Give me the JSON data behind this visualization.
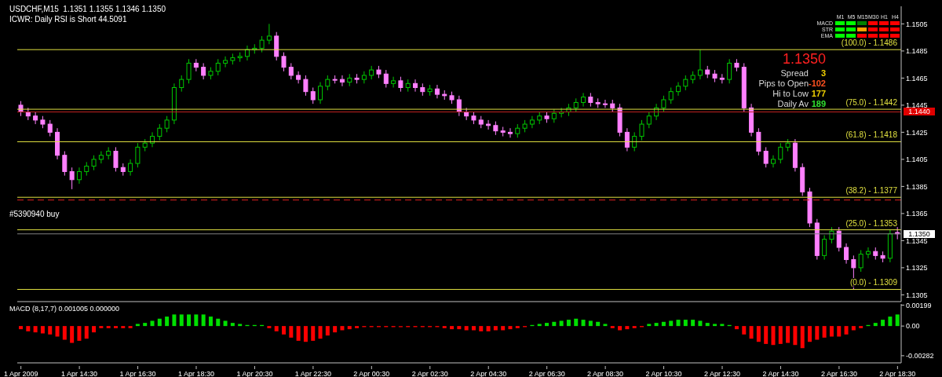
{
  "chart_data": [
    {
      "type": "candlestick",
      "title": "USDCHF,M15  1.1351 1.1355 1.1346 1.1350",
      "subtitle": "ICWR: Daily RSI is Short 44.5091",
      "ohlc": [
        [
          1.1445,
          1.1448,
          1.1437,
          1.144
        ],
        [
          1.144,
          1.1443,
          1.1434,
          1.1437
        ],
        [
          1.1437,
          1.144,
          1.1431,
          1.1434
        ],
        [
          1.1434,
          1.1437,
          1.1428,
          1.1431
        ],
        [
          1.1431,
          1.1434,
          1.1422,
          1.1425
        ],
        [
          1.1425,
          1.1428,
          1.1405,
          1.1408
        ],
        [
          1.1408,
          1.1411,
          1.1393,
          1.1396
        ],
        [
          1.1396,
          1.1399,
          1.1383,
          1.139
        ],
        [
          1.139,
          1.1399,
          1.1387,
          1.1396
        ],
        [
          1.1396,
          1.1403,
          1.1393,
          1.14
        ],
        [
          1.14,
          1.1408,
          1.1397,
          1.1405
        ],
        [
          1.1405,
          1.1411,
          1.1402,
          1.1408
        ],
        [
          1.1408,
          1.1414,
          1.1405,
          1.1411
        ],
        [
          1.1411,
          1.1414,
          1.1396,
          1.1399
        ],
        [
          1.1399,
          1.1402,
          1.1393,
          1.1396
        ],
        [
          1.1396,
          1.1405,
          1.1393,
          1.1402
        ],
        [
          1.1402,
          1.1417,
          1.1399,
          1.1414
        ],
        [
          1.1414,
          1.142,
          1.1411,
          1.1417
        ],
        [
          1.1417,
          1.1425,
          1.1414,
          1.1422
        ],
        [
          1.1422,
          1.1431,
          1.1419,
          1.1428
        ],
        [
          1.1428,
          1.1437,
          1.1425,
          1.1434
        ],
        [
          1.1434,
          1.1461,
          1.1431,
          1.1458
        ],
        [
          1.1458,
          1.1467,
          1.1455,
          1.1464
        ],
        [
          1.1464,
          1.1479,
          1.1461,
          1.1476
        ],
        [
          1.1476,
          1.1479,
          1.147,
          1.1473
        ],
        [
          1.1473,
          1.1476,
          1.1464,
          1.1467
        ],
        [
          1.1467,
          1.1473,
          1.1464,
          1.147
        ],
        [
          1.147,
          1.1479,
          1.1467,
          1.1476
        ],
        [
          1.1476,
          1.1481,
          1.1473,
          1.1478
        ],
        [
          1.1478,
          1.1483,
          1.1475,
          1.148
        ],
        [
          1.148,
          1.1484,
          1.1477,
          1.1481
        ],
        [
          1.1481,
          1.1489,
          1.1478,
          1.1486
        ],
        [
          1.1486,
          1.149,
          1.1483,
          1.1487
        ],
        [
          1.1487,
          1.1496,
          1.1484,
          1.1493
        ],
        [
          1.1493,
          1.1505,
          1.149,
          1.1496
        ],
        [
          1.1496,
          1.1499,
          1.1478,
          1.1481
        ],
        [
          1.1481,
          1.1484,
          1.147,
          1.1473
        ],
        [
          1.1473,
          1.1476,
          1.1464,
          1.1467
        ],
        [
          1.1467,
          1.147,
          1.1461,
          1.1464
        ],
        [
          1.1464,
          1.1467,
          1.1452,
          1.1455
        ],
        [
          1.1455,
          1.1458,
          1.1446,
          1.1449
        ],
        [
          1.1449,
          1.1462,
          1.1446,
          1.1459
        ],
        [
          1.1459,
          1.1467,
          1.1456,
          1.1464
        ],
        [
          1.1464,
          1.1467,
          1.1461,
          1.1464
        ],
        [
          1.1464,
          1.1467,
          1.1459,
          1.1462
        ],
        [
          1.1462,
          1.1468,
          1.1459,
          1.1465
        ],
        [
          1.1465,
          1.1468,
          1.1461,
          1.1464
        ],
        [
          1.1464,
          1.147,
          1.1461,
          1.1467
        ],
        [
          1.1467,
          1.1474,
          1.1464,
          1.1471
        ],
        [
          1.1471,
          1.1474,
          1.1465,
          1.1468
        ],
        [
          1.1468,
          1.1471,
          1.1458,
          1.1461
        ],
        [
          1.1461,
          1.1466,
          1.1458,
          1.1463
        ],
        [
          1.1463,
          1.1466,
          1.1455,
          1.1458
        ],
        [
          1.1458,
          1.1464,
          1.1455,
          1.1461
        ],
        [
          1.1461,
          1.1464,
          1.1455,
          1.1458
        ],
        [
          1.1458,
          1.1461,
          1.1452,
          1.1455
        ],
        [
          1.1455,
          1.146,
          1.1452,
          1.1457
        ],
        [
          1.1457,
          1.146,
          1.145,
          1.1453
        ],
        [
          1.1453,
          1.1456,
          1.1449,
          1.1452
        ],
        [
          1.1452,
          1.1455,
          1.1446,
          1.1449
        ],
        [
          1.1449,
          1.1452,
          1.1437,
          1.144
        ],
        [
          1.144,
          1.1443,
          1.1434,
          1.1437
        ],
        [
          1.1437,
          1.144,
          1.1431,
          1.1434
        ],
        [
          1.1434,
          1.1437,
          1.1428,
          1.1431
        ],
        [
          1.1431,
          1.1434,
          1.1427,
          1.143
        ],
        [
          1.143,
          1.1433,
          1.1423,
          1.1426
        ],
        [
          1.1426,
          1.1429,
          1.1422,
          1.1425
        ],
        [
          1.1425,
          1.1428,
          1.1421,
          1.1424
        ],
        [
          1.1424,
          1.1431,
          1.1421,
          1.1428
        ],
        [
          1.1428,
          1.1434,
          1.1425,
          1.1431
        ],
        [
          1.1431,
          1.1437,
          1.1428,
          1.1434
        ],
        [
          1.1434,
          1.144,
          1.1431,
          1.1437
        ],
        [
          1.1437,
          1.144,
          1.1432,
          1.1435
        ],
        [
          1.1435,
          1.1442,
          1.1432,
          1.1439
        ],
        [
          1.1439,
          1.1443,
          1.1436,
          1.144
        ],
        [
          1.144,
          1.1446,
          1.1437,
          1.1443
        ],
        [
          1.1443,
          1.145,
          1.144,
          1.1447
        ],
        [
          1.1447,
          1.1454,
          1.1444,
          1.1451
        ],
        [
          1.1451,
          1.1454,
          1.1444,
          1.1447
        ],
        [
          1.1447,
          1.145,
          1.1443,
          1.1446
        ],
        [
          1.1446,
          1.1449,
          1.1443,
          1.1446
        ],
        [
          1.1446,
          1.1449,
          1.144,
          1.1443
        ],
        [
          1.1443,
          1.1446,
          1.1422,
          1.1425
        ],
        [
          1.1425,
          1.1428,
          1.1411,
          1.1414
        ],
        [
          1.1414,
          1.1425,
          1.1411,
          1.1422
        ],
        [
          1.1422,
          1.1434,
          1.1419,
          1.1431
        ],
        [
          1.1431,
          1.144,
          1.1428,
          1.1437
        ],
        [
          1.1437,
          1.1446,
          1.1434,
          1.1443
        ],
        [
          1.1443,
          1.1452,
          1.144,
          1.1449
        ],
        [
          1.1449,
          1.1458,
          1.1446,
          1.1455
        ],
        [
          1.1455,
          1.1462,
          1.1452,
          1.1459
        ],
        [
          1.1459,
          1.1467,
          1.1456,
          1.1464
        ],
        [
          1.1464,
          1.147,
          1.1461,
          1.1467
        ],
        [
          1.1467,
          1.1486,
          1.1464,
          1.1471
        ],
        [
          1.1471,
          1.1474,
          1.1465,
          1.1468
        ],
        [
          1.1468,
          1.1471,
          1.1462,
          1.1465
        ],
        [
          1.1465,
          1.1468,
          1.1461,
          1.1464
        ],
        [
          1.1464,
          1.1479,
          1.1461,
          1.1476
        ],
        [
          1.1476,
          1.1479,
          1.147,
          1.1473
        ],
        [
          1.1473,
          1.1476,
          1.144,
          1.1443
        ],
        [
          1.1443,
          1.1446,
          1.1422,
          1.1425
        ],
        [
          1.1425,
          1.1428,
          1.1408,
          1.1411
        ],
        [
          1.1411,
          1.1414,
          1.1399,
          1.1402
        ],
        [
          1.1402,
          1.1408,
          1.1399,
          1.1405
        ],
        [
          1.1405,
          1.1417,
          1.1402,
          1.1414
        ],
        [
          1.1414,
          1.142,
          1.1411,
          1.1417
        ],
        [
          1.1417,
          1.142,
          1.1396,
          1.1399
        ],
        [
          1.1399,
          1.1402,
          1.1378,
          1.1381
        ],
        [
          1.1381,
          1.1384,
          1.1355,
          1.1358
        ],
        [
          1.1358,
          1.1361,
          1.1331,
          1.1334
        ],
        [
          1.1334,
          1.1349,
          1.1331,
          1.1346
        ],
        [
          1.1346,
          1.1355,
          1.1343,
          1.1352
        ],
        [
          1.1352,
          1.1355,
          1.1337,
          1.134
        ],
        [
          1.134,
          1.1343,
          1.1328,
          1.1331
        ],
        [
          1.1331,
          1.1334,
          1.1309,
          1.1325
        ],
        [
          1.1325,
          1.1338,
          1.1322,
          1.1335
        ],
        [
          1.1335,
          1.134,
          1.1332,
          1.1337
        ],
        [
          1.1337,
          1.134,
          1.1331,
          1.1334
        ],
        [
          1.1334,
          1.1337,
          1.1329,
          1.1332
        ],
        [
          1.1332,
          1.1353,
          1.1329,
          1.135
        ],
        [
          1.1351,
          1.1355,
          1.1346,
          1.135
        ]
      ],
      "colors": [
        "#ff80ff",
        "#ff80ff",
        "#ff80ff",
        "#ff80ff",
        "#ff80ff",
        "#ff80ff",
        "#ff80ff",
        "#ff80ff",
        "#00c800",
        "#00c800",
        "#00c800",
        "#00c800",
        "#00c800",
        "#ff80ff",
        "#ff80ff",
        "#00c800",
        "#00c800",
        "#00c800",
        "#00c800",
        "#00c800",
        "#00c800",
        "#00c800",
        "#00c800",
        "#00c800",
        "#ff80ff",
        "#ff80ff",
        "#00c800",
        "#00c800",
        "#00c800",
        "#00c800",
        "#00c800",
        "#00c800",
        "#00c800",
        "#00c800",
        "#00c800",
        "#ff80ff",
        "#ff80ff",
        "#ff80ff",
        "#ff80ff",
        "#ff80ff",
        "#ff80ff",
        "#00c800",
        "#00c800",
        "#ff80ff",
        "#ff80ff",
        "#00c800",
        "#ff80ff",
        "#00c800",
        "#00c800",
        "#ff80ff",
        "#ff80ff",
        "#00c800",
        "#ff80ff",
        "#00c800",
        "#ff80ff",
        "#ff80ff",
        "#00c800",
        "#ff80ff",
        "#ff80ff",
        "#ff80ff",
        "#ff80ff",
        "#ff80ff",
        "#ff80ff",
        "#ff80ff",
        "#ff80ff",
        "#ff80ff",
        "#ff80ff",
        "#ff80ff",
        "#00c800",
        "#00c800",
        "#00c800",
        "#00c800",
        "#ff80ff",
        "#00c800",
        "#00c800",
        "#00c800",
        "#00c800",
        "#00c800",
        "#ff80ff",
        "#ff80ff",
        "#ff80ff",
        "#ff80ff",
        "#ff80ff",
        "#ff80ff",
        "#00c800",
        "#00c800",
        "#00c800",
        "#00c800",
        "#00c800",
        "#00c800",
        "#00c800",
        "#00c800",
        "#00c800",
        "#00c800",
        "#ff80ff",
        "#ff80ff",
        "#ff80ff",
        "#00c800",
        "#ff80ff",
        "#ff80ff",
        "#ff80ff",
        "#ff80ff",
        "#ff80ff",
        "#00c800",
        "#00c800",
        "#00c800",
        "#ff80ff",
        "#ff80ff",
        "#ff80ff",
        "#ff80ff",
        "#00c800",
        "#00c800",
        "#ff80ff",
        "#ff80ff",
        "#ff80ff",
        "#00c800",
        "#00c800",
        "#ff80ff",
        "#ff80ff",
        "#00c800",
        "#ff80ff"
      ],
      "ylim": [
        1.13,
        1.1518
      ],
      "yticks": [
        1.1505,
        1.1485,
        1.1465,
        1.1445,
        1.1425,
        1.1405,
        1.1385,
        1.1365,
        1.1345,
        1.1325,
        1.1305
      ],
      "tick_labels": "y",
      "ref_lines": [
        {
          "axis": "y",
          "value": 1.1486,
          "color": "#e0e040"
        },
        {
          "axis": "y",
          "value": 1.1442,
          "color": "#e0e040"
        },
        {
          "axis": "y",
          "value": 1.1418,
          "color": "#e0e040"
        },
        {
          "axis": "y",
          "value": 1.1377,
          "color": "#e0e040"
        },
        {
          "axis": "y",
          "value": 1.1353,
          "color": "#e0e040"
        },
        {
          "axis": "y",
          "value": 1.1309,
          "color": "#e0e040"
        },
        {
          "axis": "y",
          "value": 1.144,
          "color": "#c02020"
        },
        {
          "axis": "y",
          "value": 1.135,
          "color": "#808080"
        },
        {
          "axis": "y",
          "value": 1.1375,
          "color": "#e02020",
          "line_style": "dashed"
        }
      ],
      "annotations": [
        "#5390940 buy",
        "1.1350",
        "Spread",
        "3",
        "Pips to Open",
        "-102",
        "Hi to Low",
        "177",
        "Daily Av",
        "189",
        "M1",
        "M5",
        "M15",
        "M30",
        "H1",
        "H4",
        "MACD",
        "STR",
        "EMA",
        "1.1440",
        "1.1350",
        "(100.0) - 1.1486",
        "(75.0) - 1.1442",
        "(61.8) - 1.1418",
        "(38.2) - 1.1377",
        "(25.0) - 1.1353",
        "(0.0) - 1.1309"
      ]
    },
    {
      "type": "bar",
      "title": "MACD (8,17,7) 0.001005 0.000000",
      "categories": [
        "1 Apr 2009",
        null,
        null,
        null,
        null,
        null,
        null,
        null,
        "1 Apr 14:30",
        null,
        null,
        null,
        null,
        null,
        null,
        null,
        "1 Apr 16:30",
        null,
        null,
        null,
        null,
        null,
        null,
        null,
        "1 Apr 18:30",
        null,
        null,
        null,
        null,
        null,
        null,
        null,
        "1 Apr 20:30",
        null,
        null,
        null,
        null,
        null,
        null,
        null,
        "1 Apr 22:30",
        null,
        null,
        null,
        null,
        null,
        null,
        null,
        "2 Apr 00:30",
        null,
        null,
        null,
        null,
        null,
        null,
        null,
        "2 Apr 02:30",
        null,
        null,
        null,
        null,
        null,
        null,
        null,
        "2 Apr 04:30",
        null,
        null,
        null,
        null,
        null,
        null,
        null,
        "2 Apr 06:30",
        null,
        null,
        null,
        null,
        null,
        null,
        null,
        "2 Apr 08:30",
        null,
        null,
        null,
        null,
        null,
        null,
        null,
        "2 Apr 10:30",
        null,
        null,
        null,
        null,
        null,
        null,
        null,
        "2 Apr 12:30",
        null,
        null,
        null,
        null,
        null,
        null,
        null,
        "2 Apr 14:30",
        null,
        null,
        null,
        null,
        null,
        null,
        null,
        "2 Apr 16:30",
        null,
        null,
        null,
        null,
        null,
        null,
        null,
        "2 Apr 18:30"
      ],
      "values": [
        -0.0003,
        -0.0005,
        -0.0006,
        -0.0007,
        -0.0008,
        -0.001,
        -0.0013,
        -0.0016,
        -0.0014,
        -0.0012,
        -0.0006,
        -0.0002,
        -0.0002,
        -0.0002,
        -0.0002,
        -0.0002,
        0.0002,
        0.0003,
        0.0005,
        0.0007,
        0.0009,
        0.0011,
        0.0011,
        0.0011,
        0.0011,
        0.0011,
        0.0009,
        0.0007,
        0.0005,
        0.0003,
        0.0002,
        0.0001,
        0.0001,
        0.0001,
        -0.0002,
        -0.0005,
        -0.0008,
        -0.0011,
        -0.0014,
        -0.0015,
        -0.0014,
        -0.0012,
        -0.0009,
        -0.0006,
        -0.0004,
        -0.0003,
        -0.0002,
        -0.0001,
        -0.0001,
        -0.0001,
        -0.0001,
        -0.0001,
        -0.0001,
        -0.0001,
        -0.0001,
        -0.0001,
        -0.0001,
        -0.0001,
        -0.0002,
        -0.0003,
        -0.0003,
        -0.0004,
        -0.0004,
        -0.0005,
        -0.0005,
        -0.0004,
        -0.0004,
        -0.0003,
        -0.0002,
        -0.0001,
        0.0001,
        0.0002,
        0.0003,
        0.0004,
        0.0005,
        0.0006,
        0.0007,
        0.0006,
        0.0005,
        0.0004,
        0.0002,
        -0.0002,
        -0.0004,
        -0.0003,
        -0.0002,
        -0.0001,
        0.0002,
        0.0003,
        0.0004,
        0.0005,
        0.0006,
        0.0006,
        0.0006,
        0.0005,
        0.0003,
        0.0002,
        0.0002,
        0.0001,
        -0.0003,
        -0.0008,
        -0.0012,
        -0.0015,
        -0.0017,
        -0.0018,
        -0.0017,
        -0.0016,
        -0.0018,
        -0.0021,
        -0.0015,
        -0.0013,
        -0.0011,
        -0.001,
        -0.001,
        -0.0008,
        -0.0004,
        -0.0002,
        0.0001,
        0.0003,
        0.0006,
        0.0009,
        0.0011
      ],
      "colors": [
        "#ff0000",
        "#ff0000",
        "#ff0000",
        "#ff0000",
        "#ff0000",
        "#ff0000",
        "#ff0000",
        "#ff0000",
        "#ff0000",
        "#ff0000",
        "#ff0000",
        "#ff0000",
        "#ff0000",
        "#ff0000",
        "#ff0000",
        "#ff0000",
        "#00e000",
        "#00e000",
        "#00e000",
        "#00e000",
        "#00e000",
        "#00e000",
        "#00e000",
        "#00e000",
        "#00e000",
        "#00e000",
        "#00e000",
        "#00e000",
        "#00e000",
        "#00e000",
        "#00e000",
        "#00e000",
        "#00e000",
        "#00e000",
        "#ff0000",
        "#ff0000",
        "#ff0000",
        "#ff0000",
        "#ff0000",
        "#ff0000",
        "#ff0000",
        "#ff0000",
        "#ff0000",
        "#ff0000",
        "#ff0000",
        "#ff0000",
        "#ff0000",
        "#ff0000",
        "#ff0000",
        "#ff0000",
        "#ff0000",
        "#ff0000",
        "#ff0000",
        "#ff0000",
        "#ff0000",
        "#ff0000",
        "#ff0000",
        "#ff0000",
        "#ff0000",
        "#ff0000",
        "#ff0000",
        "#ff0000",
        "#ff0000",
        "#ff0000",
        "#ff0000",
        "#ff0000",
        "#ff0000",
        "#ff0000",
        "#ff0000",
        "#ff0000",
        "#00e000",
        "#00e000",
        "#00e000",
        "#00e000",
        "#00e000",
        "#00e000",
        "#00e000",
        "#00e000",
        "#00e000",
        "#00e000",
        "#00e000",
        "#ff0000",
        "#ff0000",
        "#ff0000",
        "#ff0000",
        "#ff0000",
        "#00e000",
        "#00e000",
        "#00e000",
        "#00e000",
        "#00e000",
        "#00e000",
        "#00e000",
        "#00e000",
        "#00e000",
        "#00e000",
        "#00e000",
        "#00e000",
        "#ff0000",
        "#ff0000",
        "#ff0000",
        "#ff0000",
        "#ff0000",
        "#ff0000",
        "#ff0000",
        "#ff0000",
        "#ff0000",
        "#ff0000",
        "#ff0000",
        "#ff0000",
        "#ff0000",
        "#ff0000",
        "#ff0000",
        "#ff0000",
        "#ff0000",
        "#ff0000",
        "#00e000",
        "#00e000",
        "#00e000",
        "#00e000",
        "#00e000"
      ],
      "ylim": [
        -0.0035,
        0.0021
      ],
      "yticks": [
        0.00199,
        {
          "value": 0,
          "label": "0.00"
        },
        -0.00282
      ]
    }
  ]
}
